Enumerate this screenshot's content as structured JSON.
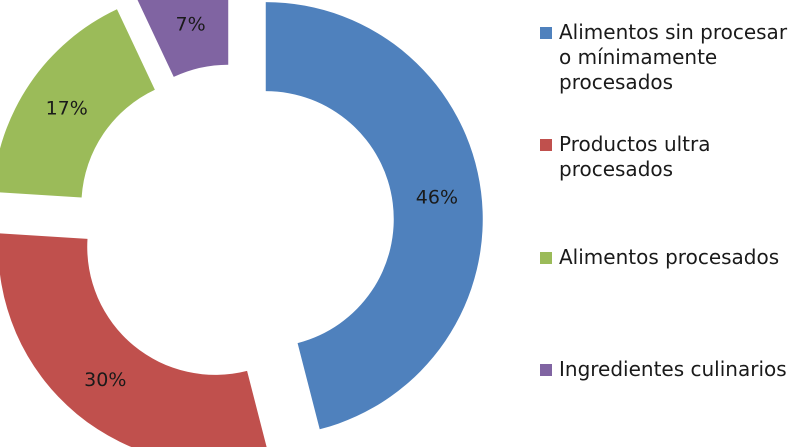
{
  "chart_data": {
    "type": "pie",
    "variant": "exploded-donut",
    "title": "",
    "categories": [
      "Alimentos sin procesar\no mínimamente\nprocesados",
      "Productos ultra\nprocesados",
      "Alimentos procesados",
      "Ingredientes culinarios"
    ],
    "values": [
      46,
      30,
      17,
      7
    ],
    "data_labels": [
      "46%",
      "30%",
      "17%",
      "7%"
    ],
    "colors": [
      "#4f81bd",
      "#c0504d",
      "#9bbb59",
      "#8064a2"
    ],
    "legend_position": "right"
  }
}
